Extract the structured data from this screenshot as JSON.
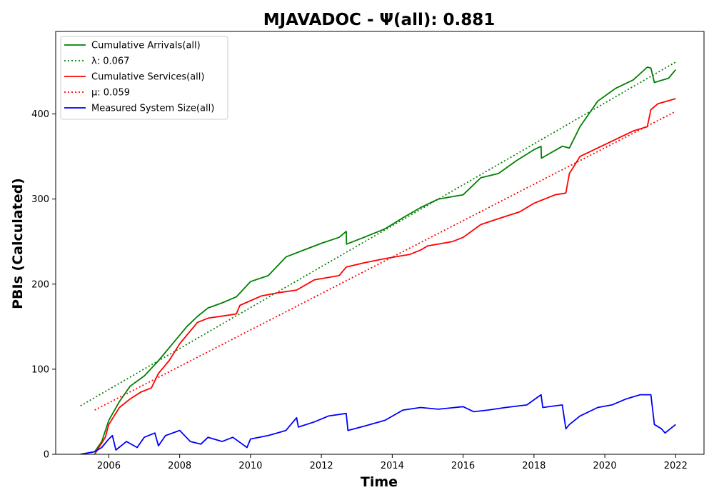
{
  "chart_data": {
    "type": "line",
    "title": "MJAVADOC -  Ψ(all): 0.881",
    "xlabel": "Time",
    "ylabel": "PBIs (Calculated)",
    "xlim": [
      2004.5,
      2022.8
    ],
    "ylim": [
      0,
      497
    ],
    "x_ticks": [
      2006,
      2008,
      2010,
      2012,
      2014,
      2016,
      2018,
      2020,
      2022
    ],
    "y_ticks": [
      0,
      100,
      200,
      300,
      400
    ],
    "grid": false,
    "legend": "top-left",
    "series": [
      {
        "name": "Cumulative Arrivals(all)",
        "color": "#008000",
        "style": "solid",
        "x": [
          2005.2,
          2005.6,
          2005.8,
          2006.0,
          2006.3,
          2006.6,
          2007.0,
          2007.4,
          2007.8,
          2008.2,
          2008.5,
          2008.8,
          2009.2,
          2009.6,
          2010.0,
          2010.5,
          2011.0,
          2011.5,
          2012.0,
          2012.5,
          2012.7,
          2012.71,
          2013.2,
          2013.8,
          2014.3,
          2014.8,
          2015.3,
          2016.0,
          2016.5,
          2017.0,
          2017.5,
          2018.0,
          2018.2,
          2018.21,
          2018.8,
          2019.0,
          2019.3,
          2019.8,
          2020.3,
          2020.8,
          2021.2,
          2021.3,
          2021.4,
          2021.8,
          2022.0
        ],
        "values": [
          0,
          3,
          15,
          40,
          62,
          80,
          92,
          110,
          130,
          150,
          162,
          172,
          178,
          185,
          203,
          210,
          232,
          240,
          248,
          255,
          262,
          247,
          255,
          265,
          278,
          290,
          300,
          305,
          325,
          330,
          345,
          358,
          362,
          348,
          362,
          360,
          385,
          415,
          430,
          440,
          455,
          454,
          437,
          442,
          452
        ]
      },
      {
        "name": "λ: 0.067",
        "color": "#008000",
        "style": "dotted",
        "x": [
          2005.2,
          2022.0
        ],
        "values": [
          57,
          461
        ]
      },
      {
        "name": "Cumulative Services(all)",
        "color": "#ff0000",
        "style": "solid",
        "x": [
          2005.6,
          2005.9,
          2006.0,
          2006.3,
          2006.6,
          2006.9,
          2007.2,
          2007.4,
          2007.7,
          2008.0,
          2008.5,
          2008.8,
          2009.3,
          2009.6,
          2009.7,
          2010.3,
          2010.8,
          2011.3,
          2011.8,
          2012.5,
          2012.7,
          2013.2,
          2013.8,
          2014.5,
          2014.8,
          2015.0,
          2015.7,
          2016.0,
          2016.5,
          2017.0,
          2017.6,
          2018.0,
          2018.6,
          2018.9,
          2019.0,
          2019.3,
          2019.8,
          2020.3,
          2020.8,
          2021.2,
          2021.3,
          2021.5,
          2022.0
        ],
        "values": [
          0,
          20,
          35,
          55,
          65,
          73,
          78,
          95,
          110,
          130,
          155,
          160,
          163,
          165,
          175,
          186,
          190,
          193,
          205,
          210,
          220,
          225,
          230,
          235,
          240,
          245,
          250,
          255,
          270,
          277,
          285,
          295,
          305,
          307,
          330,
          350,
          360,
          370,
          380,
          385,
          405,
          412,
          418
        ]
      },
      {
        "name": "μ: 0.059",
        "color": "#ff0000",
        "style": "dotted",
        "x": [
          2005.6,
          2022.0
        ],
        "values": [
          52,
          403
        ]
      },
      {
        "name": "Measured System Size(all)",
        "color": "#0000ff",
        "style": "solid",
        "x": [
          2005.2,
          2005.6,
          2005.8,
          2006.0,
          2006.1,
          2006.2,
          2006.5,
          2006.8,
          2007.0,
          2007.3,
          2007.4,
          2007.6,
          2008.0,
          2008.3,
          2008.6,
          2008.8,
          2009.2,
          2009.5,
          2009.9,
          2010.0,
          2010.5,
          2011.0,
          2011.3,
          2011.35,
          2011.8,
          2012.2,
          2012.7,
          2012.75,
          2013.2,
          2013.8,
          2014.3,
          2014.8,
          2015.3,
          2016.0,
          2016.3,
          2016.7,
          2017.2,
          2017.8,
          2018.2,
          2018.25,
          2018.8,
          2018.9,
          2019.0,
          2019.3,
          2019.8,
          2020.2,
          2020.6,
          2021.0,
          2021.3,
          2021.4,
          2021.6,
          2021.7,
          2022.0
        ],
        "values": [
          0,
          3,
          8,
          18,
          22,
          5,
          15,
          8,
          20,
          25,
          10,
          22,
          28,
          15,
          12,
          20,
          15,
          20,
          8,
          18,
          22,
          28,
          43,
          32,
          38,
          45,
          48,
          28,
          33,
          40,
          52,
          55,
          53,
          56,
          50,
          52,
          55,
          58,
          70,
          55,
          58,
          30,
          35,
          45,
          55,
          58,
          65,
          70,
          70,
          35,
          30,
          25,
          35
        ]
      }
    ]
  }
}
